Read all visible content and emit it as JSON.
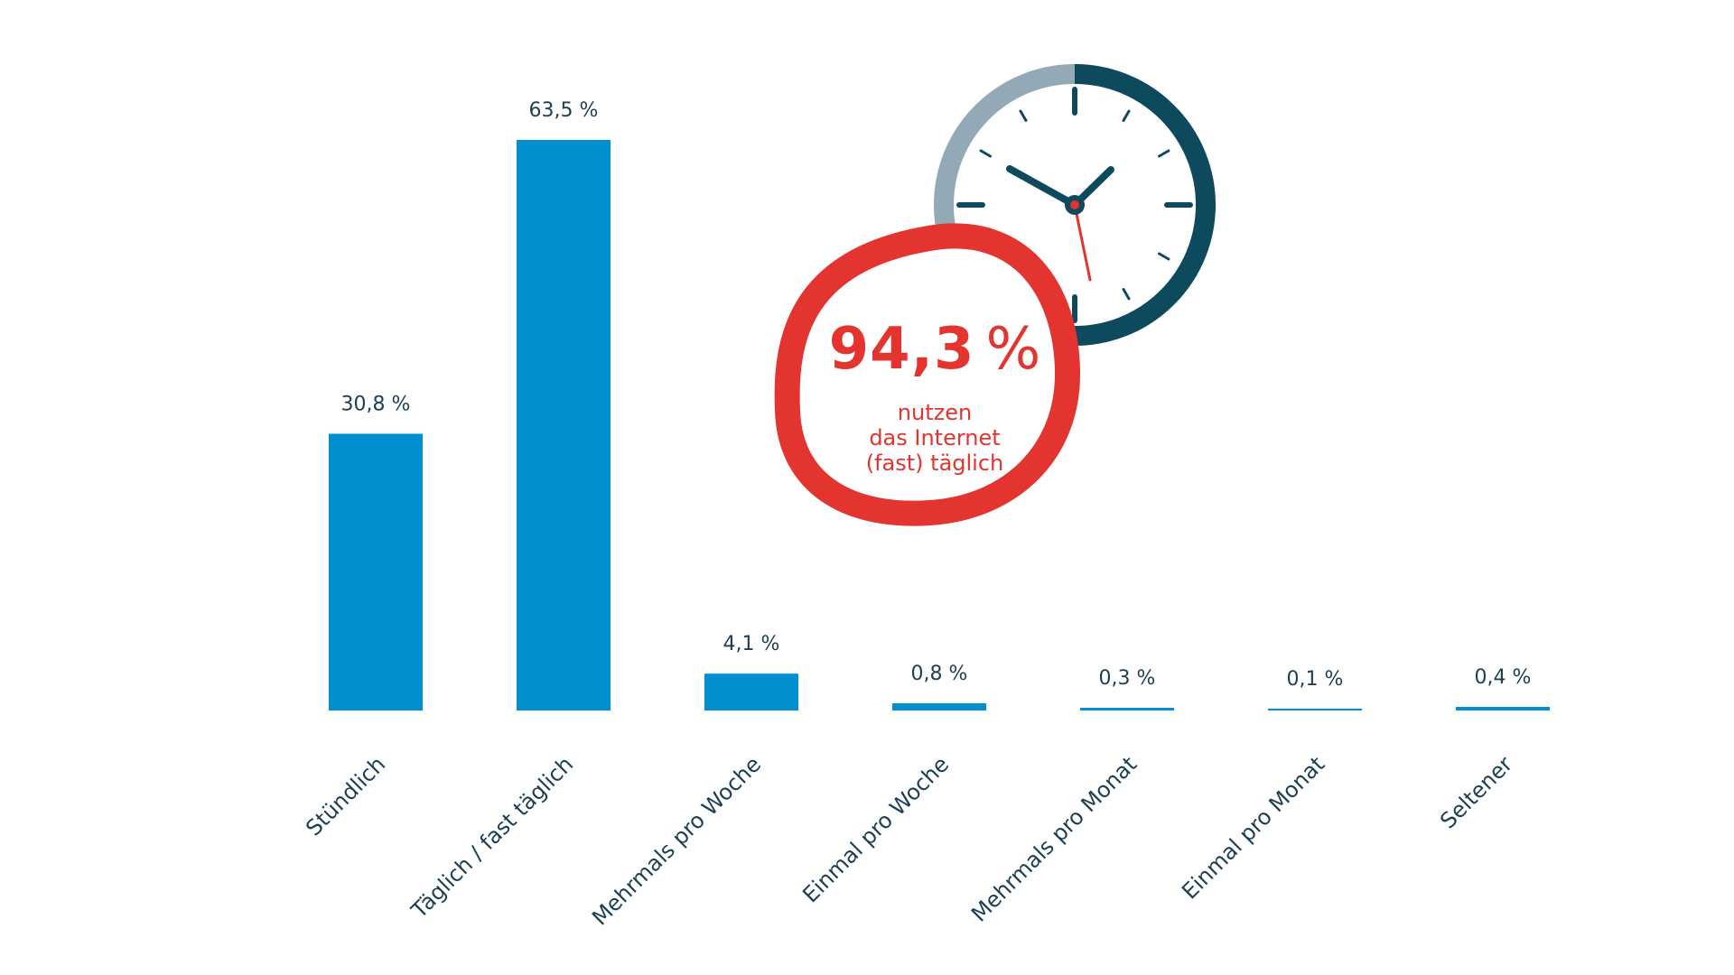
{
  "colors": {
    "bar": "#0090d0",
    "text": "#1d3f52",
    "accent_red": "#e3342f",
    "clock_dark": "#0d4a5e",
    "clock_light": "#93a9b6"
  },
  "chart_data": {
    "type": "bar",
    "categories": [
      "Stündlich",
      "Täglich / fast täglich",
      "Mehrmals pro Woche",
      "Einmal pro Woche",
      "Mehrmals pro Monat",
      "Einmal pro Monat",
      "Seltener"
    ],
    "values": [
      30.8,
      63.5,
      4.1,
      0.8,
      0.3,
      0.1,
      0.4
    ],
    "value_labels": [
      "30,8 %",
      "63,5 %",
      "4,1 %",
      "0,8 %",
      "0,3 %",
      "0,1 %",
      "0,4 %"
    ],
    "title": "",
    "xlabel": "",
    "ylabel": "",
    "ylim": [
      0,
      63.5
    ],
    "grid": false,
    "legend": "none"
  },
  "badge": {
    "number": "94,3",
    "unit": "%",
    "line1": "nutzen",
    "line2": "das Internet",
    "line3": "(fast) täglich"
  },
  "icons": {
    "clock": "clock-icon"
  }
}
